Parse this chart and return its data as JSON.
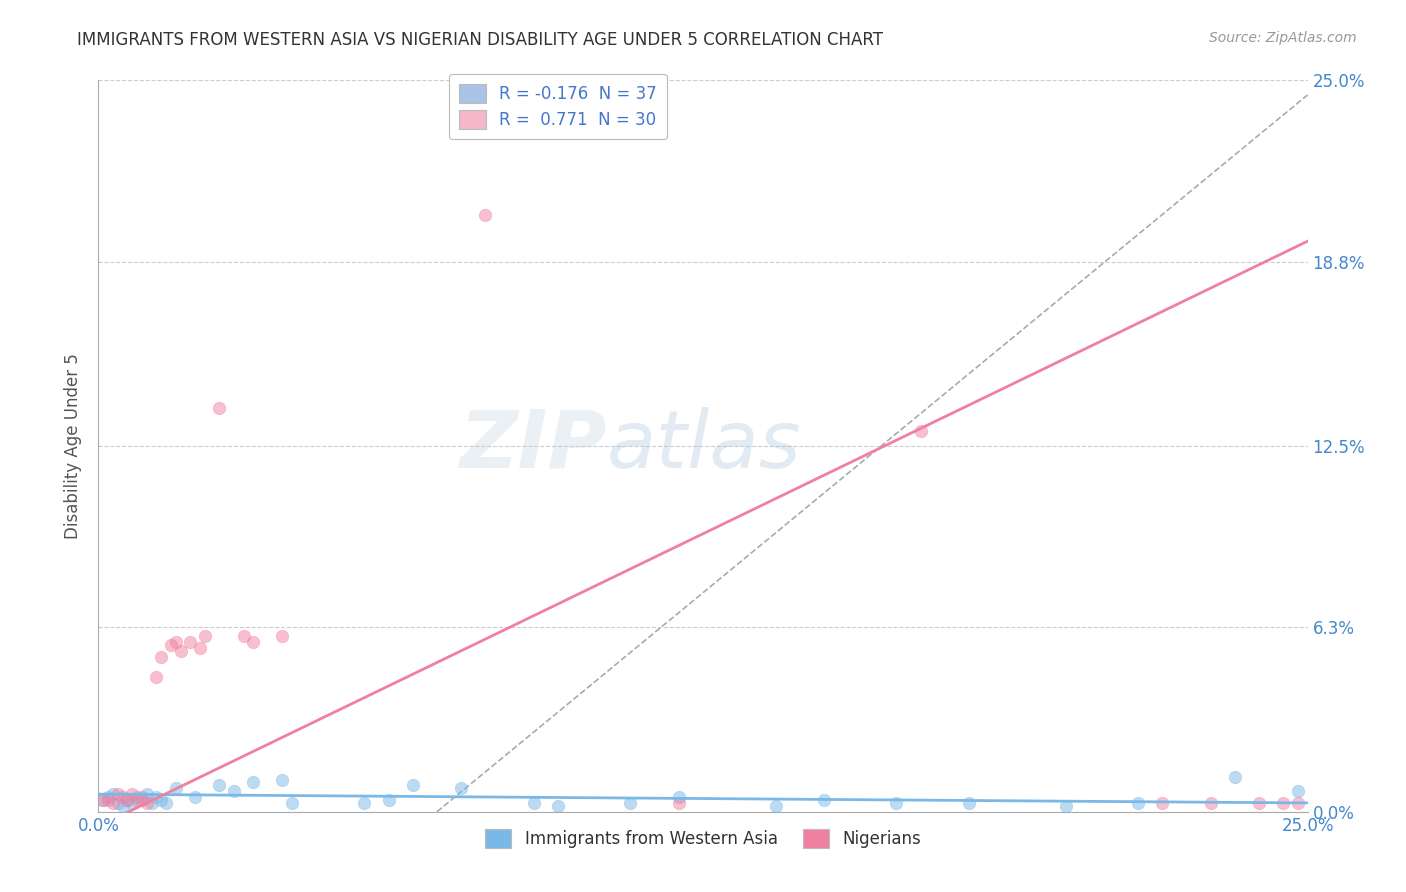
{
  "title": "IMMIGRANTS FROM WESTERN ASIA VS NIGERIAN DISABILITY AGE UNDER 5 CORRELATION CHART",
  "source": "Source: ZipAtlas.com",
  "ylabel": "Disability Age Under 5",
  "xticklabels": [
    "0.0%",
    "25.0%"
  ],
  "yticklabels": [
    "0.0%",
    "6.3%",
    "12.5%",
    "18.8%",
    "25.0%"
  ],
  "ytick_values": [
    0.0,
    0.063,
    0.125,
    0.188,
    0.25
  ],
  "xtick_values": [
    0.0,
    0.25
  ],
  "xlim": [
    0.0,
    0.25
  ],
  "ylim": [
    0.0,
    0.25
  ],
  "legend_entries": [
    {
      "label": "R = -0.176  N = 37",
      "color": "#aac4e8"
    },
    {
      "label": "R =  0.771  N = 30",
      "color": "#f4b8c8"
    }
  ],
  "bottom_legend": [
    "Immigrants from Western Asia",
    "Nigerians"
  ],
  "blue_color": "#7ab8e8",
  "pink_color": "#f080a0",
  "blue_scatter": [
    [
      0.001,
      0.004
    ],
    [
      0.002,
      0.005
    ],
    [
      0.003,
      0.006
    ],
    [
      0.004,
      0.003
    ],
    [
      0.005,
      0.002
    ],
    [
      0.006,
      0.004
    ],
    [
      0.007,
      0.003
    ],
    [
      0.008,
      0.005
    ],
    [
      0.009,
      0.004
    ],
    [
      0.01,
      0.006
    ],
    [
      0.011,
      0.003
    ],
    [
      0.012,
      0.005
    ],
    [
      0.013,
      0.004
    ],
    [
      0.014,
      0.003
    ],
    [
      0.016,
      0.008
    ],
    [
      0.02,
      0.005
    ],
    [
      0.025,
      0.009
    ],
    [
      0.028,
      0.007
    ],
    [
      0.032,
      0.01
    ],
    [
      0.038,
      0.011
    ],
    [
      0.04,
      0.003
    ],
    [
      0.055,
      0.003
    ],
    [
      0.06,
      0.004
    ],
    [
      0.065,
      0.009
    ],
    [
      0.075,
      0.008
    ],
    [
      0.09,
      0.003
    ],
    [
      0.095,
      0.002
    ],
    [
      0.11,
      0.003
    ],
    [
      0.12,
      0.005
    ],
    [
      0.14,
      0.002
    ],
    [
      0.15,
      0.004
    ],
    [
      0.165,
      0.003
    ],
    [
      0.18,
      0.003
    ],
    [
      0.2,
      0.002
    ],
    [
      0.215,
      0.003
    ],
    [
      0.235,
      0.012
    ],
    [
      0.248,
      0.007
    ]
  ],
  "pink_scatter": [
    [
      0.001,
      0.004
    ],
    [
      0.002,
      0.004
    ],
    [
      0.003,
      0.003
    ],
    [
      0.004,
      0.006
    ],
    [
      0.005,
      0.005
    ],
    [
      0.006,
      0.004
    ],
    [
      0.007,
      0.006
    ],
    [
      0.008,
      0.004
    ],
    [
      0.009,
      0.005
    ],
    [
      0.01,
      0.003
    ],
    [
      0.012,
      0.046
    ],
    [
      0.013,
      0.053
    ],
    [
      0.015,
      0.057
    ],
    [
      0.016,
      0.058
    ],
    [
      0.017,
      0.055
    ],
    [
      0.019,
      0.058
    ],
    [
      0.021,
      0.056
    ],
    [
      0.022,
      0.06
    ],
    [
      0.025,
      0.138
    ],
    [
      0.03,
      0.06
    ],
    [
      0.032,
      0.058
    ],
    [
      0.038,
      0.06
    ],
    [
      0.08,
      0.204
    ],
    [
      0.12,
      0.003
    ],
    [
      0.17,
      0.13
    ],
    [
      0.22,
      0.003
    ],
    [
      0.23,
      0.003
    ],
    [
      0.24,
      0.003
    ],
    [
      0.245,
      0.003
    ],
    [
      0.248,
      0.003
    ]
  ],
  "blue_trend_x": [
    0.0,
    0.25
  ],
  "blue_trend_y": [
    0.006,
    0.003
  ],
  "pink_trend_x": [
    0.0,
    0.25
  ],
  "pink_trend_y": [
    -0.005,
    0.195
  ],
  "grey_trend_x": [
    0.07,
    0.25
  ],
  "grey_trend_y": [
    0.0,
    0.245
  ],
  "watermark_line1": "ZIP",
  "watermark_line2": "atlas",
  "background_color": "#ffffff",
  "grid_color": "#cccccc",
  "title_color": "#333333",
  "axis_label_color": "#555555",
  "tick_label_color": "#4488cc"
}
